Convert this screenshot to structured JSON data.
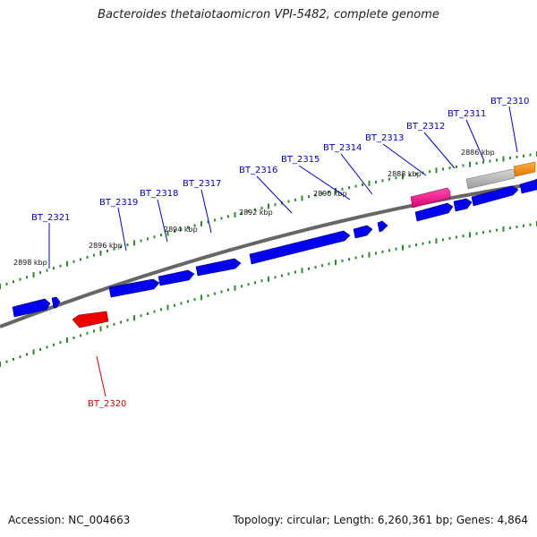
{
  "title": "Bacteroides thetaiotaomicron VPI-5482, complete genome",
  "footer": {
    "accession": "Accession: NC_004663",
    "stats": "Topology: circular; Length: 6,260,361 bp; Genes: 4,864"
  },
  "colors": {
    "forward_gene": "#0000ee",
    "reverse_gene": "#ee0000",
    "gene_label_forward": "#0000cc",
    "gene_label_reverse": "#dd0000",
    "backbone": "#777777",
    "tick": "#2e8b2e",
    "magenta_feature": "#ff1493",
    "orange_feature": "#ff8c00",
    "grey_feature": "#b0b0b0"
  },
  "kbp_ticks": [
    {
      "label": "2898 kbp"
    },
    {
      "label": "2896 kbp"
    },
    {
      "label": "2894 kbp"
    },
    {
      "label": "2892 kbp"
    },
    {
      "label": "2890 kbp"
    },
    {
      "label": "2888 kbp"
    },
    {
      "label": "2886 kbp"
    }
  ],
  "genes": [
    {
      "name": "BT_2321",
      "strand": "forward"
    },
    {
      "name": "BT_2319",
      "strand": "forward"
    },
    {
      "name": "BT_2318",
      "strand": "forward"
    },
    {
      "name": "BT_2317",
      "strand": "forward"
    },
    {
      "name": "BT_2316",
      "strand": "forward"
    },
    {
      "name": "BT_2315",
      "strand": "forward"
    },
    {
      "name": "BT_2314",
      "strand": "forward"
    },
    {
      "name": "BT_2313",
      "strand": "forward"
    },
    {
      "name": "BT_2312",
      "strand": "forward"
    },
    {
      "name": "BT_2311",
      "strand": "forward"
    },
    {
      "name": "BT_2310",
      "strand": "forward"
    },
    {
      "name": "BT_2320",
      "strand": "reverse"
    }
  ]
}
